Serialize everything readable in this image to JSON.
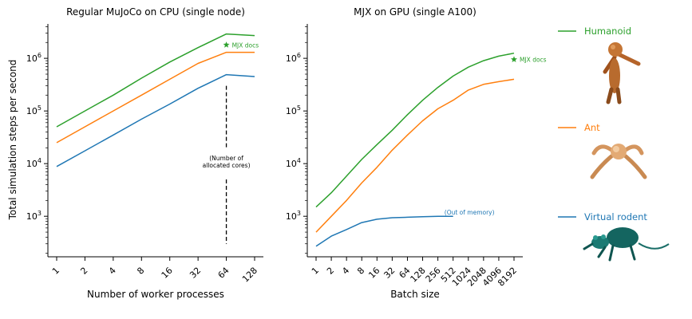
{
  "colors": {
    "humanoid": "#2ca02c",
    "ant": "#ff7f0e",
    "rodent": "#1f77b4",
    "axis": "#000000"
  },
  "shared_ylabel": "Total simulation steps per second",
  "legend": {
    "placement": "right",
    "items": [
      {
        "label": "Humanoid",
        "color_key": "humanoid",
        "icon": "humanoid-figure-icon"
      },
      {
        "label": "Ant",
        "color_key": "ant",
        "icon": "ant-figure-icon"
      },
      {
        "label": "Virtual rodent",
        "color_key": "rodent",
        "icon": "rodent-figure-icon"
      }
    ]
  },
  "chart_data": [
    {
      "type": "line",
      "title": "Regular MuJoCo on CPU (single node)",
      "xlabel": "Number of worker processes",
      "ylabel": "Total simulation steps per second",
      "x_scale": "log2",
      "y_scale": "log10",
      "x": [
        1,
        2,
        4,
        8,
        16,
        32,
        64,
        128
      ],
      "x_tick_labels": [
        "1",
        "2",
        "4",
        "8",
        "16",
        "32",
        "64",
        "128"
      ],
      "xlim": [
        1,
        128
      ],
      "ylim": [
        170,
        4500000
      ],
      "y_ticks": [
        1000,
        10000,
        100000,
        1000000
      ],
      "y_tick_labels": [
        "10^3",
        "10^4",
        "10^5",
        "10^6"
      ],
      "grid": false,
      "series": [
        {
          "name": "Humanoid",
          "color_key": "humanoid",
          "values": [
            50000,
            100000,
            200000,
            420000,
            850000,
            1600000,
            2900000,
            2700000
          ]
        },
        {
          "name": "Ant",
          "color_key": "ant",
          "values": [
            25000,
            50000,
            100000,
            200000,
            400000,
            800000,
            1300000,
            1300000
          ]
        },
        {
          "name": "Virtual rodent",
          "color_key": "rodent",
          "values": [
            8800,
            17500,
            35000,
            70000,
            135000,
            270000,
            490000,
            450000
          ]
        }
      ],
      "annotations": [
        {
          "type": "marker",
          "marker": "star",
          "x": 64,
          "y": 1800000,
          "color_key": "humanoid",
          "text": "MJX docs"
        },
        {
          "type": "vline",
          "style": "dashed",
          "x": 64,
          "y_range": [
            300,
            300000
          ]
        },
        {
          "type": "text",
          "x": 64,
          "y": 10000,
          "lines": [
            "(Number of",
            "allocated cores)"
          ]
        }
      ]
    },
    {
      "type": "line",
      "title": "MJX on GPU (single A100)",
      "xlabel": "Batch size",
      "ylabel": "",
      "x_scale": "log2",
      "y_scale": "log10",
      "x": [
        1,
        2,
        4,
        8,
        16,
        32,
        64,
        128,
        256,
        512,
        1024,
        2048,
        4096,
        8192
      ],
      "x_tick_labels": [
        "1",
        "2",
        "4",
        "8",
        "16",
        "32",
        "64",
        "128",
        "256",
        "512",
        "1024",
        "2048",
        "4096",
        "8192"
      ],
      "xlim": [
        1,
        8192
      ],
      "ylim": [
        170,
        4500000
      ],
      "y_ticks": [
        1000,
        10000,
        100000,
        1000000
      ],
      "y_tick_labels": [
        "10^3",
        "10^4",
        "10^5",
        "10^6"
      ],
      "grid": false,
      "series": [
        {
          "name": "Humanoid",
          "color_key": "humanoid",
          "values": [
            1500,
            2800,
            5800,
            12000,
            23000,
            43000,
            85000,
            160000,
            280000,
            460000,
            680000,
            900000,
            1100000,
            1250000
          ]
        },
        {
          "name": "Ant",
          "color_key": "ant",
          "values": [
            500,
            1000,
            2000,
            4300,
            8500,
            18000,
            35000,
            65000,
            110000,
            160000,
            250000,
            320000,
            360000,
            400000
          ]
        },
        {
          "name": "Virtual rodent",
          "color_key": "rodent",
          "values": [
            270,
            420,
            560,
            760,
            880,
            940,
            960,
            980,
            1000,
            1000,
            null,
            null,
            null,
            null
          ]
        }
      ],
      "annotations": [
        {
          "type": "marker",
          "marker": "star",
          "x": 8192,
          "y": 950000,
          "color_key": "humanoid",
          "text": "MJX docs"
        },
        {
          "type": "text",
          "x": 1024,
          "y": 1000,
          "color_key": "rodent",
          "lines": [
            "(Out of memory)"
          ]
        }
      ]
    }
  ]
}
